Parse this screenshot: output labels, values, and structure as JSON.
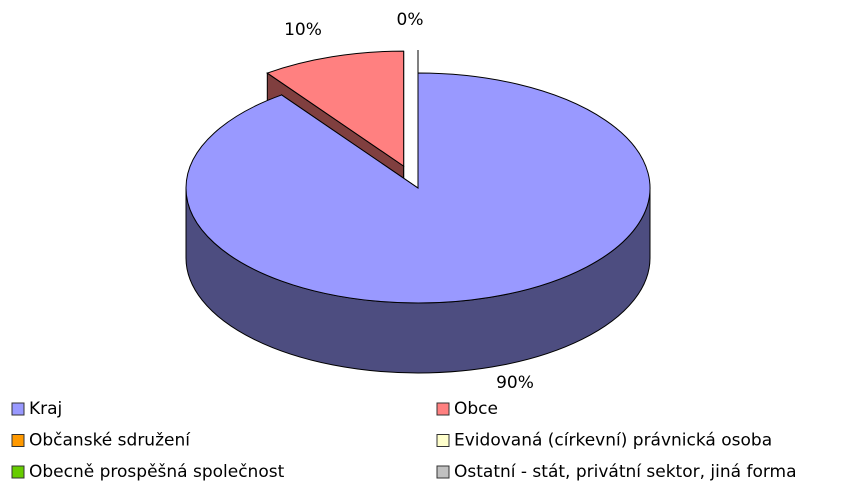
{
  "chart_data": {
    "type": "pie",
    "categories": [
      "Kraj",
      "Obce",
      "Občanské sdružení",
      "Evidovaná (církevní) právnická osoba",
      "Obecně prospěšná společnost",
      "Ostatní - stát, privátní sektor, jiná forma"
    ],
    "values": [
      90,
      10,
      0,
      0,
      0,
      0
    ],
    "value_labels": [
      "90%",
      "10%",
      "0%",
      null,
      null,
      null
    ],
    "colors": [
      "#9999ff",
      "#ff8080",
      "#ff9900",
      "#ffffcc",
      "#66cc00",
      "#c0c0c0"
    ],
    "side_colors": [
      "#4d4d80",
      "#803f3f",
      "#804d00",
      "#808066",
      "#336600",
      "#606060"
    ],
    "legend": "bottom"
  }
}
